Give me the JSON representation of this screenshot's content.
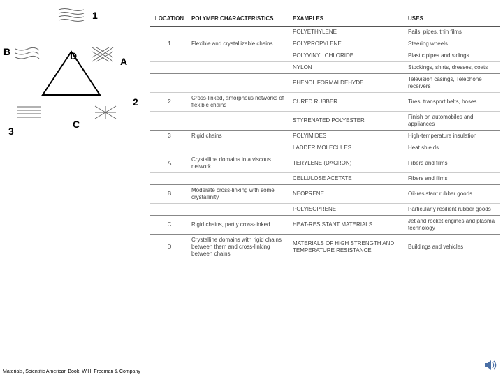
{
  "diagram": {
    "labels": {
      "n1": "1",
      "n2": "2",
      "n3": "3",
      "A": "A",
      "B": "B",
      "C": "C",
      "D": "D"
    },
    "triangle_stroke": "#000",
    "scribble_stroke": "#555"
  },
  "table": {
    "headers": {
      "location": "LOCATION",
      "polymer": "POLYMER CHARACTERISTICS",
      "examples": "EXAMPLES",
      "uses": "USES"
    },
    "rows": [
      {
        "sep": "hr",
        "loc": "",
        "char": "",
        "ex": "POLYETHYLENE",
        "use": "Pails, pipes, thin films"
      },
      {
        "sep": "sep",
        "loc": "1",
        "char": "Flexible and crystallizable chains",
        "ex": "POLYPROPYLENE",
        "use": "Steering wheels"
      },
      {
        "sep": "sep",
        "loc": "",
        "char": "",
        "ex": "POLYVINYL CHLORIDE",
        "use": "Plastic pipes and sidings"
      },
      {
        "sep": "sep",
        "loc": "",
        "char": "",
        "ex": "NYLON",
        "use": "Stockings, shirts, dresses, coats"
      },
      {
        "sep": "hr",
        "loc": "",
        "char": "",
        "ex": "PHENOL FORMALDEHYDE",
        "use": "Television casings, Telephone receivers"
      },
      {
        "sep": "sep",
        "loc": "2",
        "char": "Cross-linked, amorphous networks of flexible chains",
        "ex": "CURED RUBBER",
        "use": "Tires, transport belts, hoses"
      },
      {
        "sep": "sep",
        "loc": "",
        "char": "",
        "ex": "STYRENATED POLYESTER",
        "use": "Finish on automobiles and appliances"
      },
      {
        "sep": "hr",
        "loc": "3",
        "char": "Rigid chains",
        "ex": "POLYIMIDES",
        "use": "High-temperature insulation"
      },
      {
        "sep": "sep",
        "loc": "",
        "char": "",
        "ex": "LADDER MOLECULES",
        "use": "Heat shields"
      },
      {
        "sep": "hr",
        "loc": "A",
        "char": "Crystalline domains in a viscous network",
        "ex": "TERYLENE (DACRON)",
        "use": "Fibers and films"
      },
      {
        "sep": "sep",
        "loc": "",
        "char": "",
        "ex": "CELLULOSE ACETATE",
        "use": "Fibers and films"
      },
      {
        "sep": "hr",
        "loc": "B",
        "char": "Moderate cross-linking with some crystallinity",
        "ex": "NEOPRENE",
        "use": "Oil-resistant rubber goods"
      },
      {
        "sep": "sep",
        "loc": "",
        "char": "",
        "ex": "POLYISOPRENE",
        "use": "Particularly resilient rubber goods"
      },
      {
        "sep": "hr",
        "loc": "C",
        "char": "Rigid chains, partly cross-linked",
        "ex": "HEAT-RESISTANT MATERIALS",
        "use": "Jet and rocket engines and plasma technology"
      },
      {
        "sep": "hr",
        "loc": "D",
        "char": "Crystalline domains with rigid chains between them and cross-linking between chains",
        "ex": "MATERIALS OF HIGH STRENGTH AND TEMPERATURE RESISTANCE",
        "use": "Buildings and vehicles"
      }
    ]
  },
  "footer": "Materials, Scientific American Book, W.H. Freeman & Company",
  "colors": {
    "header_border": "#555",
    "row_border": "#888"
  }
}
